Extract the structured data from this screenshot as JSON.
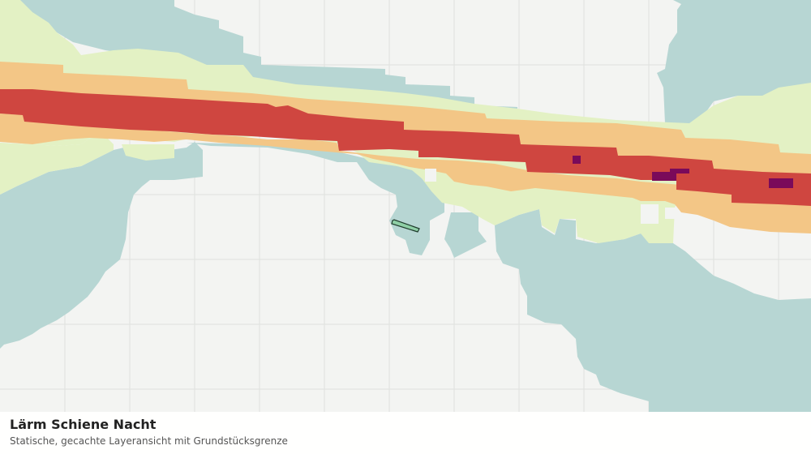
{
  "caption": {
    "title": "Lärm Schiene Nacht",
    "subtitle": "Statische, gecachte Layeransicht mit Grundstücksgrenze"
  },
  "noise_colors": {
    "band_1": "#b7d6d3",
    "band_2": "#e3f1c4",
    "band_3": "#f3c686",
    "band_4": "#cf4640",
    "band_5": "#7a0a5a"
  },
  "parcel": {
    "fill": "#8fcfa6",
    "stroke": "#1f3c2c"
  }
}
